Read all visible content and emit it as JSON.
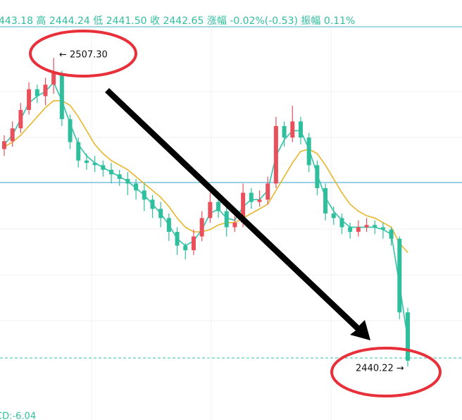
{
  "header": "443.18 高 2444.24 低 2441.50 收 2442.65 涨幅 -0.02%(-0.53) 振幅 0.11%",
  "footer": "CD:-6.04",
  "chart_data": {
    "type": "candlestick",
    "ylim": [
      2428.6,
      2519.9
    ],
    "up_color": "#e9505c",
    "down_color": "#2fbf9d",
    "candles": [
      [
        2487.5,
        2490.5,
        2486.0,
        2489.2
      ],
      [
        2489.2,
        2493.5,
        2488.0,
        2492.0
      ],
      [
        2492.0,
        2497.5,
        2491.0,
        2496.0
      ],
      [
        2496.0,
        2502.0,
        2495.0,
        2500.5
      ],
      [
        2500.5,
        2501.5,
        2497.5,
        2499.0
      ],
      [
        2499.0,
        2503.0,
        2497.0,
        2501.5
      ],
      [
        2501.5,
        2507.3,
        2499.5,
        2504.0
      ],
      [
        2504.0,
        2504.5,
        2492.5,
        2494.0
      ],
      [
        2494.0,
        2495.0,
        2487.5,
        2489.0
      ],
      [
        2489.0,
        2490.0,
        2483.5,
        2485.0
      ],
      [
        2485.0,
        2486.5,
        2483.0,
        2484.5
      ],
      [
        2484.5,
        2486.0,
        2482.5,
        2484.0
      ],
      [
        2484.0,
        2485.0,
        2481.5,
        2483.0
      ],
      [
        2483.0,
        2484.5,
        2480.0,
        2482.0
      ],
      [
        2482.0,
        2483.0,
        2479.5,
        2481.0
      ],
      [
        2481.0,
        2482.5,
        2477.5,
        2480.0
      ],
      [
        2480.0,
        2481.0,
        2476.5,
        2478.5
      ],
      [
        2478.5,
        2480.0,
        2474.0,
        2476.5
      ],
      [
        2476.5,
        2477.5,
        2472.5,
        2474.5
      ],
      [
        2474.5,
        2476.0,
        2470.5,
        2472.5
      ],
      [
        2472.5,
        2473.5,
        2467.5,
        2469.5
      ],
      [
        2469.5,
        2470.5,
        2464.5,
        2466.5
      ],
      [
        2466.5,
        2467.0,
        2463.5,
        2465.5
      ],
      [
        2465.5,
        2470.0,
        2464.5,
        2468.5
      ],
      [
        2468.5,
        2474.0,
        2467.5,
        2472.5
      ],
      [
        2472.5,
        2478.0,
        2471.5,
        2476.0
      ],
      [
        2476.0,
        2477.5,
        2472.5,
        2474.0
      ],
      [
        2474.0,
        2475.0,
        2468.5,
        2470.5
      ],
      [
        2470.5,
        2473.0,
        2469.5,
        2471.5
      ],
      [
        2471.5,
        2480.0,
        2470.5,
        2478.0
      ],
      [
        2478.0,
        2479.0,
        2474.5,
        2476.0
      ],
      [
        2476.0,
        2478.5,
        2475.0,
        2476.5
      ],
      [
        2476.5,
        2481.5,
        2475.5,
        2480.0
      ],
      [
        2480.0,
        2494.5,
        2479.0,
        2492.5
      ],
      [
        2492.5,
        2493.5,
        2488.0,
        2490.0
      ],
      [
        2490.0,
        2496.9,
        2489.0,
        2493.5
      ],
      [
        2493.5,
        2494.5,
        2488.5,
        2490.0
      ],
      [
        2490.0,
        2491.0,
        2482.5,
        2484.0
      ],
      [
        2484.0,
        2485.0,
        2477.5,
        2479.0
      ],
      [
        2479.0,
        2480.0,
        2472.0,
        2473.5
      ],
      [
        2473.5,
        2475.0,
        2471.0,
        2472.5
      ],
      [
        2472.5,
        2473.5,
        2469.0,
        2470.5
      ],
      [
        2470.5,
        2471.5,
        2468.0,
        2469.5
      ],
      [
        2469.5,
        2472.0,
        2468.5,
        2470.5
      ],
      [
        2470.5,
        2472.5,
        2469.5,
        2471.0
      ],
      [
        2471.0,
        2472.0,
        2469.0,
        2470.5
      ],
      [
        2470.5,
        2471.5,
        2468.0,
        2470.0
      ],
      [
        2470.0,
        2470.5,
        2466.5,
        2468.0
      ],
      [
        2468.0,
        2468.5,
        2450.5,
        2452.0
      ],
      [
        2452.0,
        2453.0,
        2440.22,
        2441.5
      ]
    ],
    "series": [
      {
        "color": "#e8b62c",
        "values": [
          2488,
          2489,
          2490.5,
          2492.5,
          2494.5,
          2496.5,
          2498.0,
          2498.0,
          2497.0,
          2494.5,
          2491.5,
          2488.5,
          2486.5,
          2485.0,
          2484.0,
          2483.0,
          2481.5,
          2480.0,
          2478.5,
          2477.0,
          2475.0,
          2472.5,
          2470.5,
          2469.5,
          2469.5,
          2470.0,
          2471.0,
          2471.5,
          2471.5,
          2472.5,
          2473.5,
          2474.5,
          2475.5,
          2478.5,
          2481.5,
          2484.5,
          2487.0,
          2487.5,
          2486.5,
          2484.0,
          2481.0,
          2478.0,
          2475.5,
          2474.0,
          2473.0,
          2472.5,
          2471.5,
          2470.5,
          2467.0,
          2465.0
        ]
      },
      {
        "color": "#33c2a8",
        "values": [
          2488.5,
          2490.5,
          2494,
          2497.5,
          2499,
          2500,
          2502,
          2498,
          2493,
          2488.5,
          2486,
          2484.5,
          2483.5,
          2482.5,
          2481.5,
          2480.5,
          2479,
          2477.5,
          2475.5,
          2473.5,
          2471,
          2468,
          2466.5,
          2467.5,
          2470,
          2473.5,
          2474.5,
          2472.5,
          2472,
          2475,
          2476.5,
          2476.5,
          2478.5,
          2486,
          2489.5,
          2491.5,
          2491.5,
          2487.5,
          2482,
          2477,
          2474,
          2472,
          2470.5,
          2470.5,
          2470.5,
          2470.5,
          2470,
          2469,
          2458,
          2446
        ]
      }
    ],
    "max_label": {
      "value": 2507.3,
      "label": "← 2507.30"
    },
    "min_label": {
      "value": 2440.22,
      "label": "2440.22 →"
    }
  }
}
